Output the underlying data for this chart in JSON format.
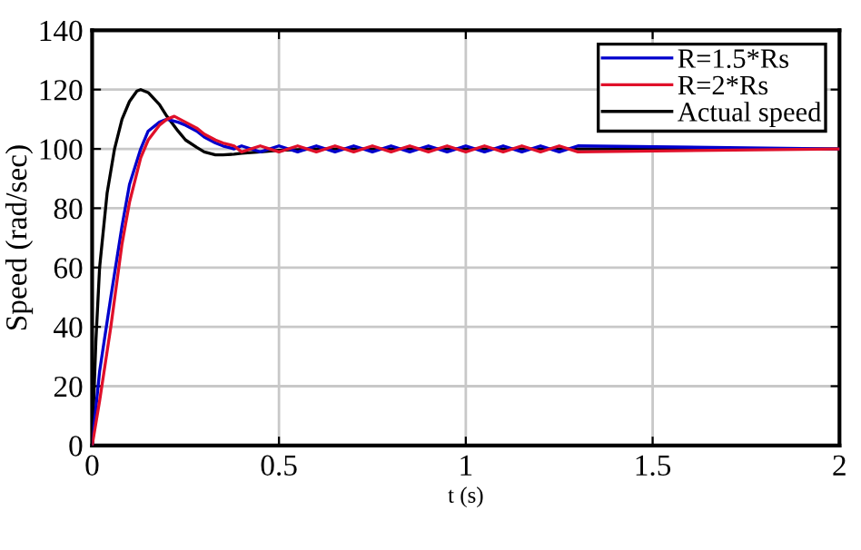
{
  "chart_data": {
    "type": "line",
    "xlabel": "t (s)",
    "ylabel": "Speed (rad/sec)",
    "xlim": [
      0,
      2
    ],
    "ylim": [
      0,
      140
    ],
    "xticks": [
      0,
      0.5,
      1,
      1.5,
      2
    ],
    "yticks": [
      0,
      20,
      40,
      60,
      80,
      100,
      120,
      140
    ],
    "grid": true,
    "legend": "top right",
    "line_style": "solid",
    "marker": "none",
    "series": [
      {
        "name": "Actual speed",
        "color": "#000000",
        "x": [
          0,
          0.01,
          0.02,
          0.04,
          0.06,
          0.08,
          0.1,
          0.12,
          0.13,
          0.15,
          0.18,
          0.2,
          0.23,
          0.25,
          0.28,
          0.3,
          0.33,
          0.35,
          0.38,
          0.4,
          0.45,
          0.5,
          0.6,
          0.8,
          1.0,
          1.3,
          2.0
        ],
        "values": [
          0,
          35,
          60,
          85,
          100,
          110,
          116,
          119.5,
          120,
          119,
          115,
          111,
          106,
          103,
          100.5,
          99,
          98,
          98,
          98.2,
          98.5,
          99,
          99.5,
          100,
          100,
          100,
          100,
          100
        ]
      },
      {
        "name": "R=1.5*Rs",
        "color": "#0000cc",
        "x": [
          0,
          0.02,
          0.05,
          0.08,
          0.1,
          0.13,
          0.15,
          0.18,
          0.2,
          0.23,
          0.25,
          0.28,
          0.3,
          0.33,
          0.35,
          0.38,
          0.4,
          0.45,
          0.5,
          0.55,
          0.6,
          0.65,
          0.7,
          0.75,
          0.8,
          0.85,
          0.9,
          0.95,
          1.0,
          1.05,
          1.1,
          1.15,
          1.2,
          1.25,
          1.3,
          2.0
        ],
        "values": [
          0,
          25,
          50,
          74,
          88,
          100,
          106,
          109,
          110,
          109,
          108,
          106,
          104,
          102,
          101,
          100,
          101,
          99,
          101,
          99,
          101,
          99,
          101,
          99,
          101,
          99,
          101,
          99,
          101,
          99,
          101,
          99,
          101,
          99,
          101,
          100
        ]
      },
      {
        "name": "R=2*Rs",
        "color": "#e0102a",
        "x": [
          0,
          0.02,
          0.05,
          0.08,
          0.1,
          0.13,
          0.15,
          0.18,
          0.2,
          0.22,
          0.25,
          0.28,
          0.3,
          0.33,
          0.35,
          0.38,
          0.4,
          0.45,
          0.5,
          0.55,
          0.6,
          0.65,
          0.7,
          0.75,
          0.8,
          0.85,
          0.9,
          0.95,
          1.0,
          1.05,
          1.1,
          1.15,
          1.2,
          1.25,
          1.3,
          2.0
        ],
        "values": [
          0,
          15,
          40,
          68,
          82,
          97,
          103,
          108,
          110,
          111,
          109,
          107,
          105,
          103,
          102,
          101,
          99,
          101,
          99,
          101,
          99,
          101,
          99,
          101,
          99,
          101,
          99,
          101,
          99,
          101,
          99,
          101,
          99,
          101,
          99,
          100
        ]
      }
    ]
  }
}
